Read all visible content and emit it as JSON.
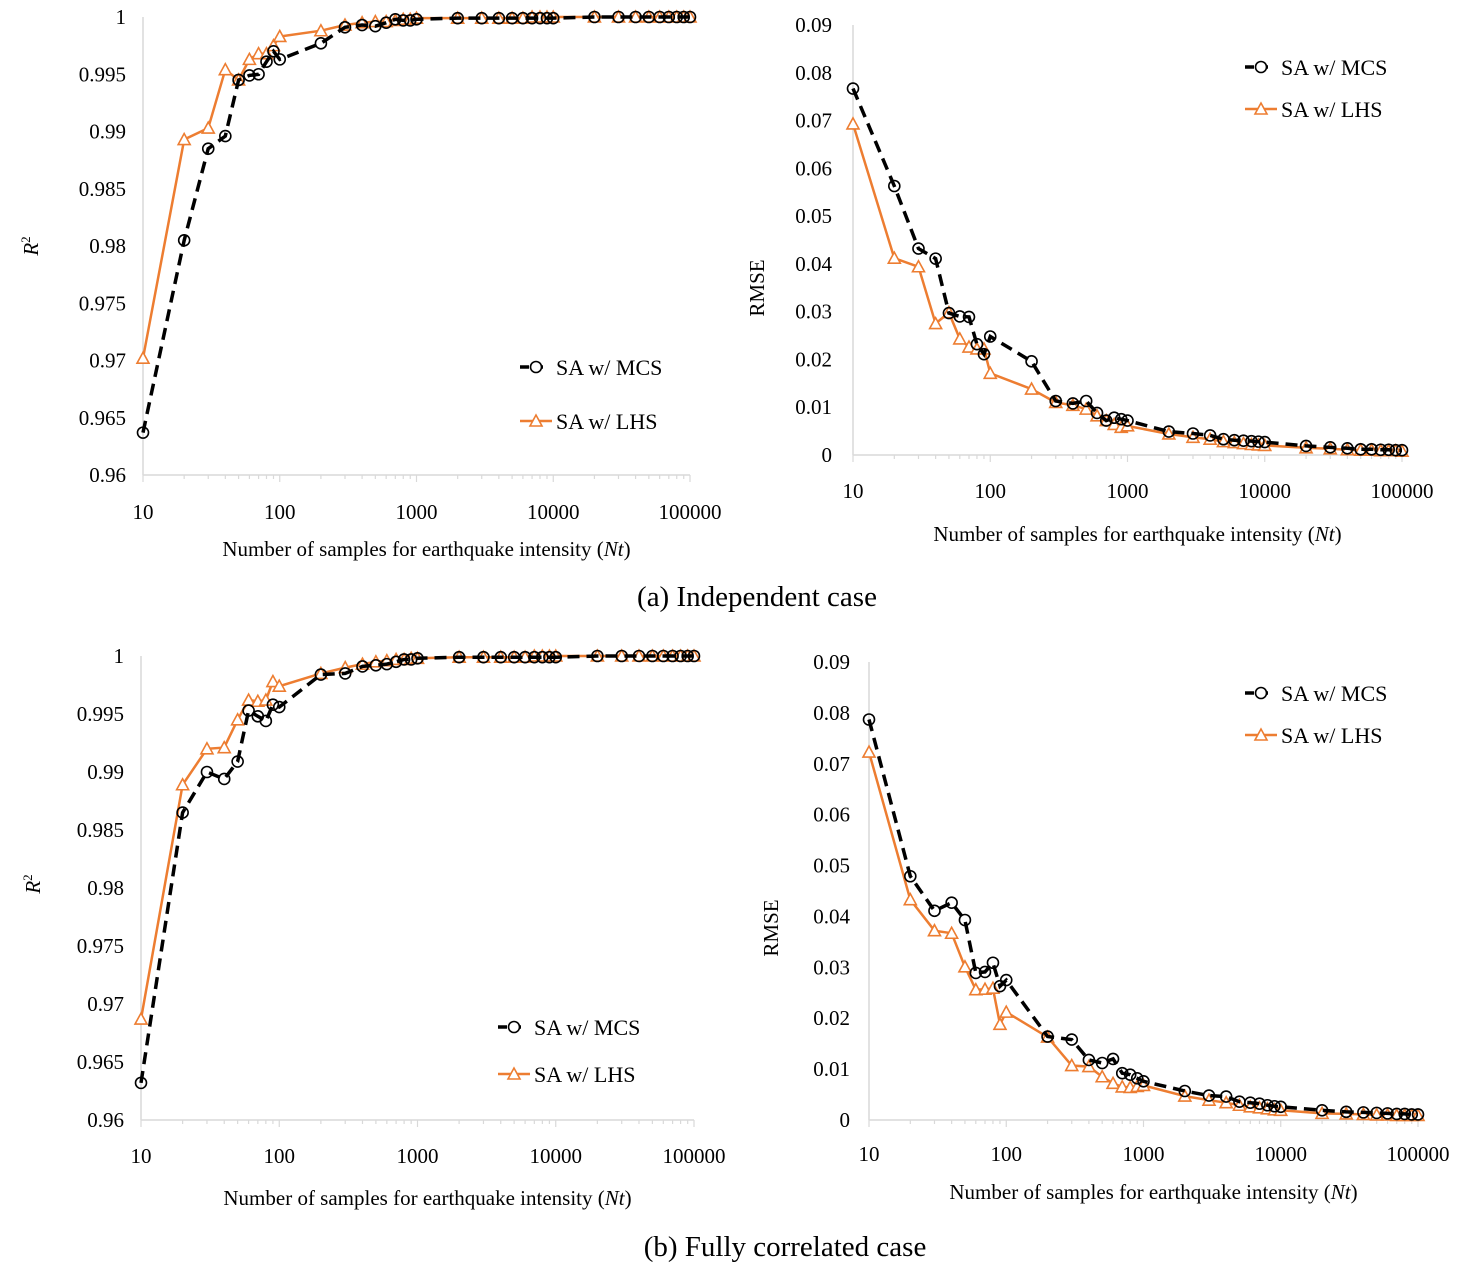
{
  "x_values": [
    10,
    20,
    30,
    40,
    50,
    60,
    70,
    80,
    90,
    100,
    200,
    300,
    400,
    500,
    600,
    700,
    800,
    900,
    1000,
    2000,
    3000,
    4000,
    5000,
    6000,
    7000,
    8000,
    9000,
    10000,
    20000,
    30000,
    40000,
    50000,
    60000,
    70000,
    80000,
    90000,
    100000
  ],
  "captions": {
    "a": "(a) Independent  case",
    "b": "(b) Fully  correlated  case"
  },
  "colors": {
    "mcs": "#000000",
    "lhs": "#ED7D31",
    "axis": "#D9D9D9"
  },
  "chart_data": [
    {
      "id": "a-r2",
      "type": "line",
      "x_scale": "log",
      "xlim": [
        10,
        100000
      ],
      "ylim": [
        0.96,
        1
      ],
      "y_ticks": [
        "0.96",
        "0.965",
        "0.97",
        "0.975",
        "0.98",
        "0.985",
        "0.99",
        "0.995",
        "1"
      ],
      "x_ticks": [
        "10",
        "100",
        "1000",
        "10000",
        "100000"
      ],
      "xlabel": "Number of samples for earthquake intensity (",
      "xlabel_italic": "Nt",
      "xlabel_end": ")",
      "ylabel": "R",
      "ylabel_sup": "2",
      "legend_position": "bottom-right",
      "series": [
        {
          "name": "SA w/ MCS",
          "values": [
            0.9637,
            0.9805,
            0.9885,
            0.9896,
            0.9945,
            0.9949,
            0.995,
            0.9961,
            0.997,
            0.9963,
            0.9977,
            0.9991,
            0.9993,
            0.9992,
            0.9995,
            0.9998,
            0.9997,
            0.9997,
            0.9998,
            0.9999,
            0.9999,
            0.9999,
            0.9999,
            0.9999,
            0.9999,
            0.9999,
            0.9999,
            0.9999,
            1.0,
            1.0,
            1.0,
            1.0,
            1.0,
            1.0,
            1.0,
            1.0,
            1.0
          ]
        },
        {
          "name": "SA w/ LHS",
          "values": [
            0.9702,
            0.9893,
            0.9903,
            0.9954,
            0.9945,
            0.9963,
            0.9968,
            0.9968,
            0.9975,
            0.9983,
            0.9988,
            0.9993,
            0.9995,
            0.9996,
            0.9996,
            0.9997,
            0.9998,
            0.9998,
            0.9999,
            0.9999,
            0.9999,
            0.9999,
            0.9999,
            0.9999,
            1.0,
            1.0,
            1.0,
            1.0,
            1.0,
            1.0,
            1.0,
            1.0,
            1.0,
            1.0,
            1.0,
            1.0,
            1.0
          ]
        }
      ]
    },
    {
      "id": "a-rmse",
      "type": "line",
      "x_scale": "log",
      "xlim": [
        10,
        100000
      ],
      "ylim": [
        0,
        0.09
      ],
      "y_ticks": [
        "0",
        "0.01",
        "0.02",
        "0.03",
        "0.04",
        "0.05",
        "0.06",
        "0.07",
        "0.08",
        "0.09"
      ],
      "x_ticks": [
        "10",
        "100",
        "1000",
        "10000",
        "100000"
      ],
      "xlabel": "Number of samples for earthquake intensity (",
      "xlabel_italic": "Nt",
      "xlabel_end": ")",
      "ylabel": "RMSE",
      "ylabel_sup": "",
      "legend_position": "top-right",
      "series": [
        {
          "name": "SA w/ MCS",
          "values": [
            0.0767,
            0.0563,
            0.0432,
            0.0411,
            0.0297,
            0.029,
            0.0289,
            0.0232,
            0.0211,
            0.0248,
            0.0196,
            0.0113,
            0.0108,
            0.0113,
            0.0088,
            0.0072,
            0.0078,
            0.0075,
            0.0072,
            0.0049,
            0.0045,
            0.0041,
            0.0033,
            0.0031,
            0.003,
            0.0029,
            0.0028,
            0.0027,
            0.0019,
            0.0016,
            0.0014,
            0.0012,
            0.0012,
            0.0011,
            0.0011,
            0.001,
            0.001
          ]
        },
        {
          "name": "SA w/ LHS",
          "values": [
            0.0693,
            0.0412,
            0.0394,
            0.0275,
            0.0298,
            0.0243,
            0.0226,
            0.0222,
            0.0222,
            0.0171,
            0.0138,
            0.011,
            0.0104,
            0.0096,
            0.0082,
            0.0072,
            0.0064,
            0.0058,
            0.0061,
            0.0044,
            0.0037,
            0.0033,
            0.0028,
            0.0026,
            0.0024,
            0.0022,
            0.0021,
            0.002,
            0.0015,
            0.0013,
            0.0011,
            0.001,
            0.001,
            0.0009,
            0.0009,
            0.0009,
            0.0008
          ]
        }
      ]
    },
    {
      "id": "b-r2",
      "type": "line",
      "x_scale": "log",
      "xlim": [
        10,
        100000
      ],
      "ylim": [
        0.96,
        1
      ],
      "y_ticks": [
        "0.96",
        "0.965",
        "0.97",
        "0.975",
        "0.98",
        "0.985",
        "0.99",
        "0.995",
        "1"
      ],
      "x_ticks": [
        "10",
        "100",
        "1000",
        "10000",
        "100000"
      ],
      "xlabel": "Number of samples for earthquake intensity (",
      "xlabel_italic": "Nt",
      "xlabel_end": ")",
      "ylabel": "R",
      "ylabel_sup": "2",
      "legend_position": "bottom-right",
      "series": [
        {
          "name": "SA w/ MCS",
          "values": [
            0.9632,
            0.9865,
            0.99,
            0.9894,
            0.9909,
            0.9953,
            0.9948,
            0.9944,
            0.9958,
            0.9956,
            0.9984,
            0.9985,
            0.9991,
            0.9992,
            0.9993,
            0.9995,
            0.9997,
            0.9997,
            0.9998,
            0.9999,
            0.9999,
            0.9999,
            0.9999,
            0.9999,
            0.9999,
            0.9999,
            0.9999,
            0.9999,
            1.0,
            1.0,
            1.0,
            1.0,
            1.0,
            1.0,
            1.0,
            1.0,
            1.0
          ]
        },
        {
          "name": "SA w/ LHS",
          "values": [
            0.9687,
            0.9889,
            0.992,
            0.9921,
            0.9945,
            0.9962,
            0.9961,
            0.9962,
            0.9978,
            0.9974,
            0.9985,
            0.999,
            0.9993,
            0.9995,
            0.9996,
            0.9997,
            0.9997,
            0.9998,
            0.9998,
            0.9999,
            0.9999,
            0.9999,
            0.9999,
            0.9999,
            1.0,
            1.0,
            1.0,
            1.0,
            1.0,
            1.0,
            1.0,
            1.0,
            1.0,
            1.0,
            1.0,
            1.0,
            1.0
          ]
        }
      ]
    },
    {
      "id": "b-rmse",
      "type": "line",
      "x_scale": "log",
      "xlim": [
        10,
        100000
      ],
      "ylim": [
        0,
        0.09
      ],
      "y_ticks": [
        "0",
        "0.01",
        "0.02",
        "0.03",
        "0.04",
        "0.05",
        "0.06",
        "0.07",
        "0.08",
        "0.09"
      ],
      "x_ticks": [
        "10",
        "100",
        "1000",
        "10000",
        "100000"
      ],
      "xlabel": "Number of samples for earthquake intensity (",
      "xlabel_italic": "Nt",
      "xlabel_end": ")",
      "ylabel": "RMSE",
      "ylabel_sup": "",
      "legend_position": "top-right",
      "series": [
        {
          "name": "SA w/ MCS",
          "values": [
            0.0787,
            0.0479,
            0.0411,
            0.0427,
            0.0393,
            0.0289,
            0.0291,
            0.0309,
            0.0263,
            0.0275,
            0.0164,
            0.0158,
            0.0118,
            0.0112,
            0.012,
            0.0092,
            0.0089,
            0.0082,
            0.0076,
            0.0057,
            0.0048,
            0.0046,
            0.0036,
            0.0034,
            0.0032,
            0.0029,
            0.0027,
            0.0026,
            0.0019,
            0.0016,
            0.0015,
            0.0014,
            0.0013,
            0.0012,
            0.0012,
            0.0011,
            0.0011
          ]
        },
        {
          "name": "SA w/ LHS",
          "values": [
            0.0723,
            0.0433,
            0.0372,
            0.0367,
            0.0301,
            0.0256,
            0.0257,
            0.0259,
            0.0188,
            0.0212,
            0.0163,
            0.0107,
            0.0105,
            0.0085,
            0.0072,
            0.0065,
            0.0064,
            0.0066,
            0.0068,
            0.0047,
            0.0039,
            0.0034,
            0.0029,
            0.0026,
            0.0024,
            0.0022,
            0.002,
            0.0019,
            0.0013,
            0.0012,
            0.0011,
            0.001,
            0.001,
            0.0009,
            0.0009,
            0.0009,
            0.0009
          ]
        }
      ]
    }
  ]
}
